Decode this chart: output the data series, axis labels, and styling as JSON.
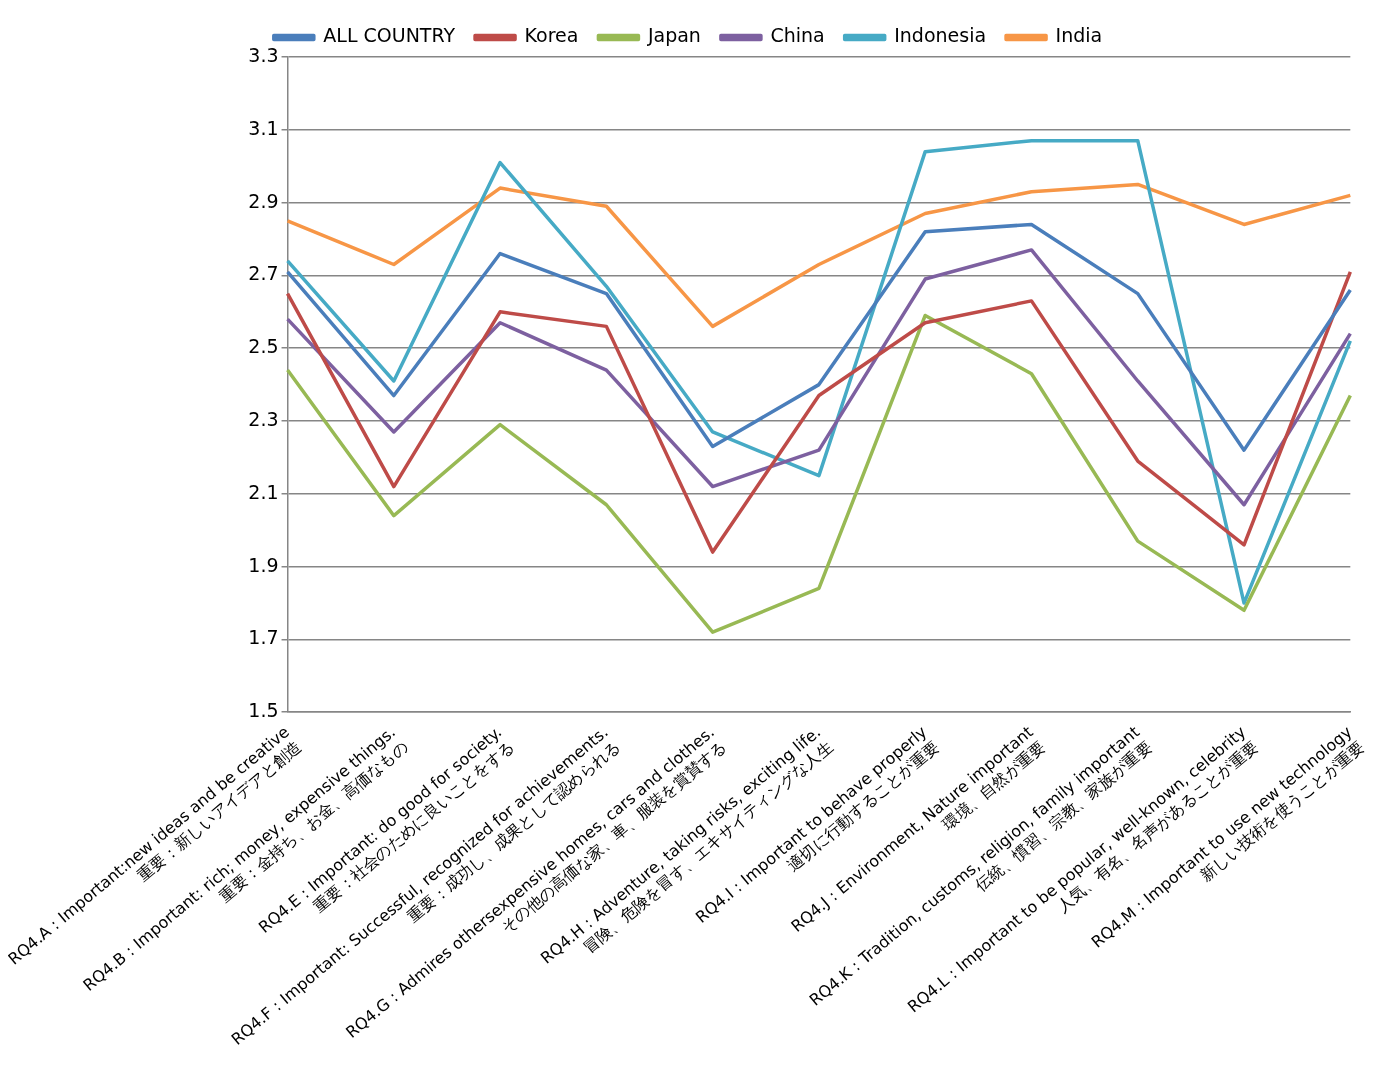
{
  "chart_data": {
    "type": "line",
    "categories": [
      "RQ4.A : Important:new ideas and be creative\n重要：新しいアイデアと創造",
      "RQ4.B : Important: rich; money, expensive things.\n重要：金持ち、お金、高価なもの",
      "RQ4.E : Important: do good for society.\n重要：社会のために良いことをする",
      "RQ4.F : Important: Successful, recognized for achievements.\n重要：成功し、成果として認められる",
      "RQ4.G : Admires othersexpensive homes, cars and clothes.\nその他の高価な家、車、服装を賞賛する",
      "RQ4.H : Adventure, taking risks, exciting life.\n冒険、危険を冒す、エキサイティングな人生",
      "RQ4.I : Important to behave properly\n適切に行動することが重要",
      "RQ4.J : Environment, Nature important\n環境、自然が重要",
      "RQ4.K : Tradition, customs, religion, family important\n伝統、慣習、宗教、家族が重要",
      "RQ4.L : Important to be popular, well-known, celebrity\n人気、有名、名声があることが重要",
      "RQ4.M : Important to use new technology\n新しい技術を使うことが重要"
    ],
    "series": [
      {
        "name": "ALL COUNTRY",
        "color": "#4a7ebb",
        "values": [
          2.71,
          2.37,
          2.76,
          2.65,
          2.23,
          2.4,
          2.82,
          2.84,
          2.65,
          2.22,
          2.66
        ]
      },
      {
        "name": "Korea",
        "color": "#be4b48",
        "values": [
          2.65,
          2.12,
          2.6,
          2.56,
          1.94,
          2.37,
          2.57,
          2.63,
          2.19,
          1.96,
          2.71
        ]
      },
      {
        "name": "Japan",
        "color": "#98b954",
        "values": [
          2.44,
          2.04,
          2.29,
          2.07,
          1.72,
          1.84,
          2.59,
          2.43,
          1.97,
          1.78,
          2.37
        ]
      },
      {
        "name": "China",
        "color": "#7d60a0",
        "values": [
          2.58,
          2.27,
          2.57,
          2.44,
          2.12,
          2.22,
          2.69,
          2.77,
          2.41,
          2.07,
          2.54
        ]
      },
      {
        "name": "Indonesia",
        "color": "#46aac5",
        "values": [
          2.74,
          2.41,
          3.01,
          2.67,
          2.27,
          2.15,
          3.04,
          3.07,
          3.07,
          1.8,
          2.52
        ]
      },
      {
        "name": "India",
        "color": "#f79646",
        "values": [
          2.85,
          2.73,
          2.94,
          2.89,
          2.56,
          2.73,
          2.87,
          2.93,
          2.95,
          2.84,
          2.92
        ]
      }
    ],
    "ylim": [
      1.5,
      3.3
    ],
    "yticks": [
      1.5,
      1.7,
      1.9,
      2.1,
      2.3,
      2.5,
      2.7,
      2.9,
      3.1,
      3.3
    ],
    "grid": "y",
    "legend": "top",
    "marker": "none",
    "line_style": "solid"
  }
}
